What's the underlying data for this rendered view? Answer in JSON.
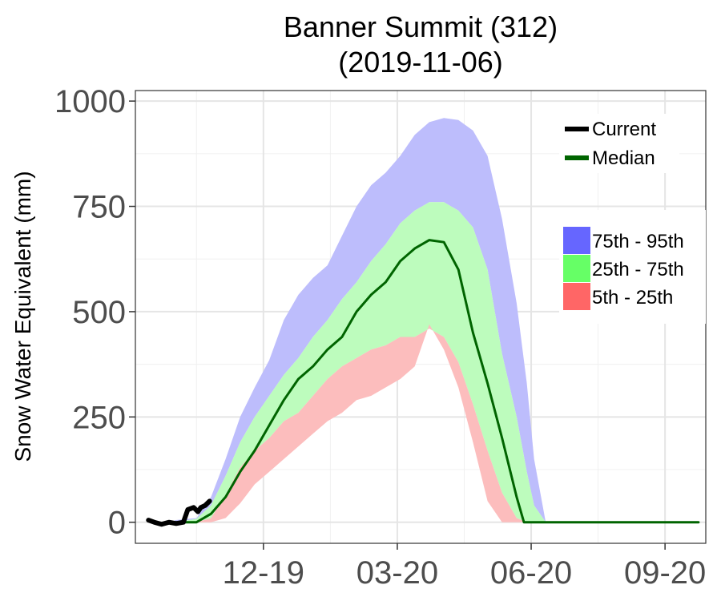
{
  "chart_data": {
    "type": "area",
    "title": "Banner Summit (312)",
    "subtitle": "(2019-11-06)",
    "xlabel": "",
    "ylabel": "Snow Water Equivalent (mm)",
    "ylim": [
      -50,
      1025
    ],
    "xlim": [
      "2019-09-22",
      "2020-10-18"
    ],
    "yticks": [
      {
        "value": 0,
        "label": "0"
      },
      {
        "value": 250,
        "label": "250"
      },
      {
        "value": 500,
        "label": "500"
      },
      {
        "value": 750,
        "label": "750"
      },
      {
        "value": 1000,
        "label": "1000"
      }
    ],
    "xticks": [
      {
        "date": "2019-12-19",
        "label": "12-19"
      },
      {
        "date": "2020-03-20",
        "label": "03-20"
      },
      {
        "date": "2020-06-20",
        "label": "06-20"
      },
      {
        "date": "2020-09-20",
        "label": "09-20"
      }
    ],
    "x_minor_ticks": [
      "2019-11-03",
      "2020-02-03",
      "2020-05-05",
      "2020-08-05"
    ],
    "y_minor_ticks": [
      125,
      375,
      625,
      875
    ],
    "grid": true,
    "legend_lines": [
      {
        "label": "Current",
        "color": "#000000"
      },
      {
        "label": "Median",
        "color": "#006400"
      }
    ],
    "legend_bands": [
      {
        "label": "75th - 95th",
        "color": "#6666ff"
      },
      {
        "label": "25th - 75th",
        "color": "#66ff66"
      },
      {
        "label": "5th - 25th",
        "color": "#ff6666"
      }
    ],
    "bands": [
      {
        "name": "75th - 95th",
        "color": "#bdbdfc",
        "lower_key": "p75",
        "upper_key": "p95"
      },
      {
        "name": "25th - 75th",
        "color": "#bdfcbd",
        "lower_key": "p25",
        "upper_key": "p75"
      },
      {
        "name": "5th - 25th",
        "color": "#fcbdbd",
        "lower_key": "p5",
        "upper_key": "p25"
      }
    ],
    "percentiles": {
      "dates": [
        "2019-10-19",
        "2019-11-03",
        "2019-11-13",
        "2019-11-23",
        "2019-12-03",
        "2019-12-13",
        "2019-12-23",
        "2020-01-02",
        "2020-01-12",
        "2020-01-22",
        "2020-02-01",
        "2020-02-11",
        "2020-02-21",
        "2020-03-02",
        "2020-03-12",
        "2020-03-22",
        "2020-04-01",
        "2020-04-11",
        "2020-04-21",
        "2020-05-01",
        "2020-05-11",
        "2020-05-21",
        "2020-05-31",
        "2020-06-10",
        "2020-06-17",
        "2020-06-22",
        "2020-06-30",
        "2020-07-05",
        "2020-10-13"
      ],
      "p95": [
        5,
        10,
        60,
        150,
        250,
        320,
        385,
        480,
        540,
        580,
        610,
        680,
        750,
        800,
        830,
        870,
        920,
        950,
        960,
        955,
        930,
        870,
        720,
        520,
        330,
        150,
        0,
        0,
        0
      ],
      "p75": [
        0,
        8,
        40,
        110,
        190,
        250,
        300,
        350,
        390,
        440,
        480,
        530,
        570,
        620,
        660,
        710,
        740,
        760,
        760,
        740,
        700,
        600,
        400,
        250,
        120,
        40,
        0,
        0,
        0
      ],
      "p25": [
        0,
        0,
        10,
        65,
        130,
        170,
        200,
        240,
        260,
        300,
        340,
        370,
        390,
        410,
        420,
        440,
        440,
        460,
        440,
        380,
        280,
        170,
        70,
        10,
        0,
        0,
        0,
        0,
        0
      ],
      "p5": [
        0,
        0,
        0,
        10,
        45,
        90,
        120,
        150,
        180,
        210,
        240,
        260,
        290,
        300,
        320,
        340,
        370,
        470,
        410,
        320,
        190,
        50,
        0,
        0,
        0,
        0,
        0,
        0,
        0
      ]
    },
    "series": [
      {
        "name": "Median",
        "color": "#006400",
        "points": [
          [
            "2019-10-19",
            0
          ],
          [
            "2019-11-03",
            0
          ],
          [
            "2019-11-13",
            20
          ],
          [
            "2019-11-23",
            60
          ],
          [
            "2019-12-03",
            120
          ],
          [
            "2019-12-13",
            170
          ],
          [
            "2019-12-23",
            230
          ],
          [
            "2020-01-02",
            290
          ],
          [
            "2020-01-12",
            340
          ],
          [
            "2020-01-22",
            370
          ],
          [
            "2020-02-01",
            410
          ],
          [
            "2020-02-11",
            440
          ],
          [
            "2020-02-21",
            500
          ],
          [
            "2020-03-02",
            540
          ],
          [
            "2020-03-12",
            570
          ],
          [
            "2020-03-22",
            620
          ],
          [
            "2020-04-01",
            650
          ],
          [
            "2020-04-11",
            670
          ],
          [
            "2020-04-21",
            665
          ],
          [
            "2020-05-01",
            600
          ],
          [
            "2020-05-11",
            450
          ],
          [
            "2020-05-21",
            330
          ],
          [
            "2020-05-31",
            200
          ],
          [
            "2020-06-10",
            60
          ],
          [
            "2020-06-15",
            0
          ],
          [
            "2020-10-13",
            0
          ]
        ]
      },
      {
        "name": "Current",
        "color": "#000000",
        "points": [
          [
            "2019-10-01",
            5
          ],
          [
            "2019-10-05",
            0
          ],
          [
            "2019-10-10",
            -5
          ],
          [
            "2019-10-15",
            0
          ],
          [
            "2019-10-20",
            -3
          ],
          [
            "2019-10-25",
            0
          ],
          [
            "2019-10-28",
            30
          ],
          [
            "2019-11-01",
            35
          ],
          [
            "2019-11-04",
            25
          ],
          [
            "2019-11-06",
            35
          ],
          [
            "2019-11-09",
            40
          ],
          [
            "2019-11-12",
            50
          ]
        ]
      }
    ]
  }
}
